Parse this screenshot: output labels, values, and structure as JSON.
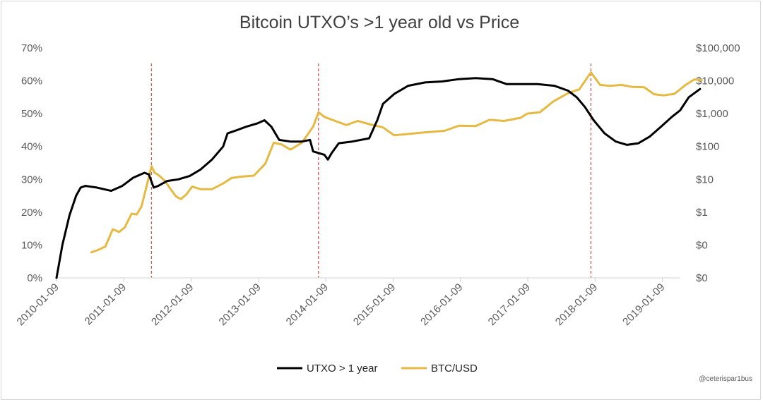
{
  "chart_data": {
    "type": "line",
    "title": "Bitcoin UTXO’s >1 year old vs Price",
    "x_tick_labels": [
      "2010-01-09",
      "2011-01-09",
      "2012-01-09",
      "2013-01-09",
      "2014-01-09",
      "2015-01-09",
      "2016-01-09",
      "2017-01-09",
      "2018-01-09",
      "2019-01-09"
    ],
    "y_left": {
      "ticks": [
        "0%",
        "10%",
        "20%",
        "30%",
        "40%",
        "50%",
        "60%",
        "70%"
      ],
      "ylim": [
        0,
        70
      ]
    },
    "y_right": {
      "scale": "log",
      "ticks": [
        "$0",
        "$0",
        "$1",
        "$10",
        "$100",
        "$1,000",
        "$10,000",
        "$100,000"
      ]
    },
    "grid": false,
    "legend_position": "bottom",
    "annotations": {
      "vertical_dashed_lines": [
        "2011-06-08",
        "2013-11-30",
        "2017-12-17"
      ],
      "credit": "@ceterispar1bus"
    },
    "series": [
      {
        "name": "UTXO > 1 year",
        "axis": "left",
        "color": "#000000",
        "points": [
          [
            "2010-01-09",
            0
          ],
          [
            "2010-02-10",
            10
          ],
          [
            "2010-03-20",
            19
          ],
          [
            "2010-04-25",
            25
          ],
          [
            "2010-05-20",
            27.5
          ],
          [
            "2010-06-15",
            28
          ],
          [
            "2010-08-15",
            27.5
          ],
          [
            "2010-11-01",
            26.5
          ],
          [
            "2011-01-01",
            28
          ],
          [
            "2011-03-01",
            30.5
          ],
          [
            "2011-05-01",
            32
          ],
          [
            "2011-05-25",
            31.5
          ],
          [
            "2011-06-20",
            27.5
          ],
          [
            "2011-07-15",
            28
          ],
          [
            "2011-09-01",
            29.5
          ],
          [
            "2011-11-01",
            30
          ],
          [
            "2012-01-01",
            31
          ],
          [
            "2012-03-01",
            33
          ],
          [
            "2012-05-01",
            36
          ],
          [
            "2012-07-01",
            40
          ],
          [
            "2012-07-25",
            44
          ],
          [
            "2012-09-15",
            45
          ],
          [
            "2012-11-01",
            46
          ],
          [
            "2013-01-01",
            47
          ],
          [
            "2013-02-10",
            48
          ],
          [
            "2013-03-20",
            46
          ],
          [
            "2013-05-01",
            42
          ],
          [
            "2013-07-01",
            41.5
          ],
          [
            "2013-09-01",
            41.5
          ],
          [
            "2013-10-15",
            42
          ],
          [
            "2013-11-01",
            38.5
          ],
          [
            "2014-01-01",
            37.5
          ],
          [
            "2014-01-20",
            36
          ],
          [
            "2014-02-10",
            38
          ],
          [
            "2014-03-20",
            41
          ],
          [
            "2014-06-01",
            41.5
          ],
          [
            "2014-09-01",
            42.5
          ],
          [
            "2014-10-15",
            48
          ],
          [
            "2014-11-15",
            53
          ],
          [
            "2015-01-15",
            56
          ],
          [
            "2015-04-01",
            58.5
          ],
          [
            "2015-07-01",
            59.5
          ],
          [
            "2015-10-01",
            59.8
          ],
          [
            "2016-01-01",
            60.5
          ],
          [
            "2016-04-01",
            60.8
          ],
          [
            "2016-07-01",
            60.5
          ],
          [
            "2016-09-15",
            59
          ],
          [
            "2016-12-01",
            59
          ],
          [
            "2017-03-01",
            59
          ],
          [
            "2017-06-01",
            58.5
          ],
          [
            "2017-08-15",
            57
          ],
          [
            "2017-10-01",
            55
          ],
          [
            "2017-11-15",
            52
          ],
          [
            "2018-01-01",
            48
          ],
          [
            "2018-03-01",
            44
          ],
          [
            "2018-05-01",
            41.5
          ],
          [
            "2018-07-01",
            40.5
          ],
          [
            "2018-09-01",
            41
          ],
          [
            "2018-11-01",
            43
          ],
          [
            "2019-01-01",
            46
          ],
          [
            "2019-03-01",
            49
          ],
          [
            "2019-04-15",
            51
          ],
          [
            "2019-06-01",
            55
          ],
          [
            "2019-08-01",
            57.5
          ]
        ]
      },
      {
        "name": "BTC/USD",
        "axis": "right",
        "color": "#e6b943",
        "points": [
          [
            "2010-07-17",
            0.06
          ],
          [
            "2010-08-20",
            0.07
          ],
          [
            "2010-10-01",
            0.09
          ],
          [
            "2010-11-10",
            0.3
          ],
          [
            "2010-12-15",
            0.25
          ],
          [
            "2011-01-15",
            0.35
          ],
          [
            "2011-02-20",
            0.9
          ],
          [
            "2011-03-20",
            0.85
          ],
          [
            "2011-04-15",
            1.5
          ],
          [
            "2011-05-15",
            7
          ],
          [
            "2011-06-08",
            25
          ],
          [
            "2011-06-25",
            16
          ],
          [
            "2011-07-20",
            13
          ],
          [
            "2011-08-20",
            9
          ],
          [
            "2011-09-20",
            5
          ],
          [
            "2011-10-20",
            3
          ],
          [
            "2011-11-15",
            2.5
          ],
          [
            "2011-12-15",
            3.5
          ],
          [
            "2012-01-15",
            6
          ],
          [
            "2012-03-01",
            5
          ],
          [
            "2012-05-01",
            5
          ],
          [
            "2012-07-01",
            7.5
          ],
          [
            "2012-08-15",
            11
          ],
          [
            "2012-10-01",
            12
          ],
          [
            "2012-12-15",
            13
          ],
          [
            "2013-02-15",
            30
          ],
          [
            "2013-04-01",
            130
          ],
          [
            "2013-05-15",
            115
          ],
          [
            "2013-07-01",
            80
          ],
          [
            "2013-09-01",
            130
          ],
          [
            "2013-11-01",
            400
          ],
          [
            "2013-11-30",
            1100
          ],
          [
            "2014-01-01",
            800
          ],
          [
            "2014-03-01",
            600
          ],
          [
            "2014-05-01",
            450
          ],
          [
            "2014-07-01",
            600
          ],
          [
            "2014-09-01",
            480
          ],
          [
            "2014-11-15",
            380
          ],
          [
            "2015-01-15",
            220
          ],
          [
            "2015-04-01",
            240
          ],
          [
            "2015-07-01",
            270
          ],
          [
            "2015-10-15",
            300
          ],
          [
            "2016-01-01",
            430
          ],
          [
            "2016-04-01",
            420
          ],
          [
            "2016-06-15",
            650
          ],
          [
            "2016-09-01",
            600
          ],
          [
            "2016-12-01",
            750
          ],
          [
            "2017-01-05",
            1000
          ],
          [
            "2017-03-15",
            1100
          ],
          [
            "2017-05-25",
            2300
          ],
          [
            "2017-08-15",
            4200
          ],
          [
            "2017-10-15",
            5500
          ],
          [
            "2017-12-17",
            18000
          ],
          [
            "2018-02-05",
            7500
          ],
          [
            "2018-04-01",
            7000
          ],
          [
            "2018-06-01",
            7500
          ],
          [
            "2018-08-01",
            6500
          ],
          [
            "2018-10-01",
            6400
          ],
          [
            "2018-11-25",
            3900
          ],
          [
            "2019-01-15",
            3600
          ],
          [
            "2019-03-15",
            4000
          ],
          [
            "2019-05-15",
            7500
          ],
          [
            "2019-07-01",
            11000
          ],
          [
            "2019-08-10",
            10500
          ]
        ]
      }
    ]
  }
}
